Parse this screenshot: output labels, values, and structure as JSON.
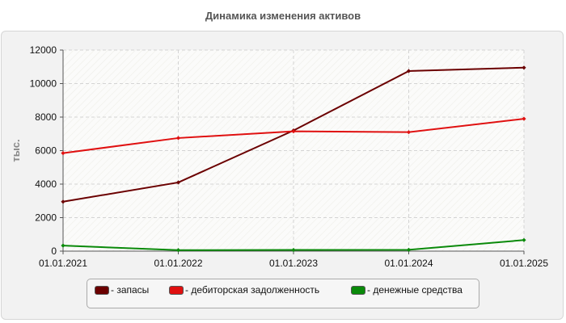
{
  "chart_data": {
    "type": "line",
    "title": "Динамика изменения активов",
    "ylabel": "тыс.",
    "xlabel": "",
    "x": [
      "01.01.2021",
      "01.01.2022",
      "01.01.2023",
      "01.01.2024",
      "01.01.2025"
    ],
    "ylim": [
      0,
      12000
    ],
    "yticks": [
      0,
      2000,
      4000,
      6000,
      8000,
      10000,
      12000
    ],
    "grid": true,
    "legend_position": "bottom",
    "series": [
      {
        "name": "- запасы",
        "color": "#6b0000",
        "values": [
          2950,
          4100,
          7200,
          10750,
          10950
        ]
      },
      {
        "name": "- дебиторская задолженность",
        "color": "#e01010",
        "values": [
          5850,
          6750,
          7150,
          7100,
          7900
        ]
      },
      {
        "name": "- денежные средства",
        "color": "#0a8a0a",
        "values": [
          330,
          60,
          70,
          80,
          660
        ]
      }
    ]
  }
}
